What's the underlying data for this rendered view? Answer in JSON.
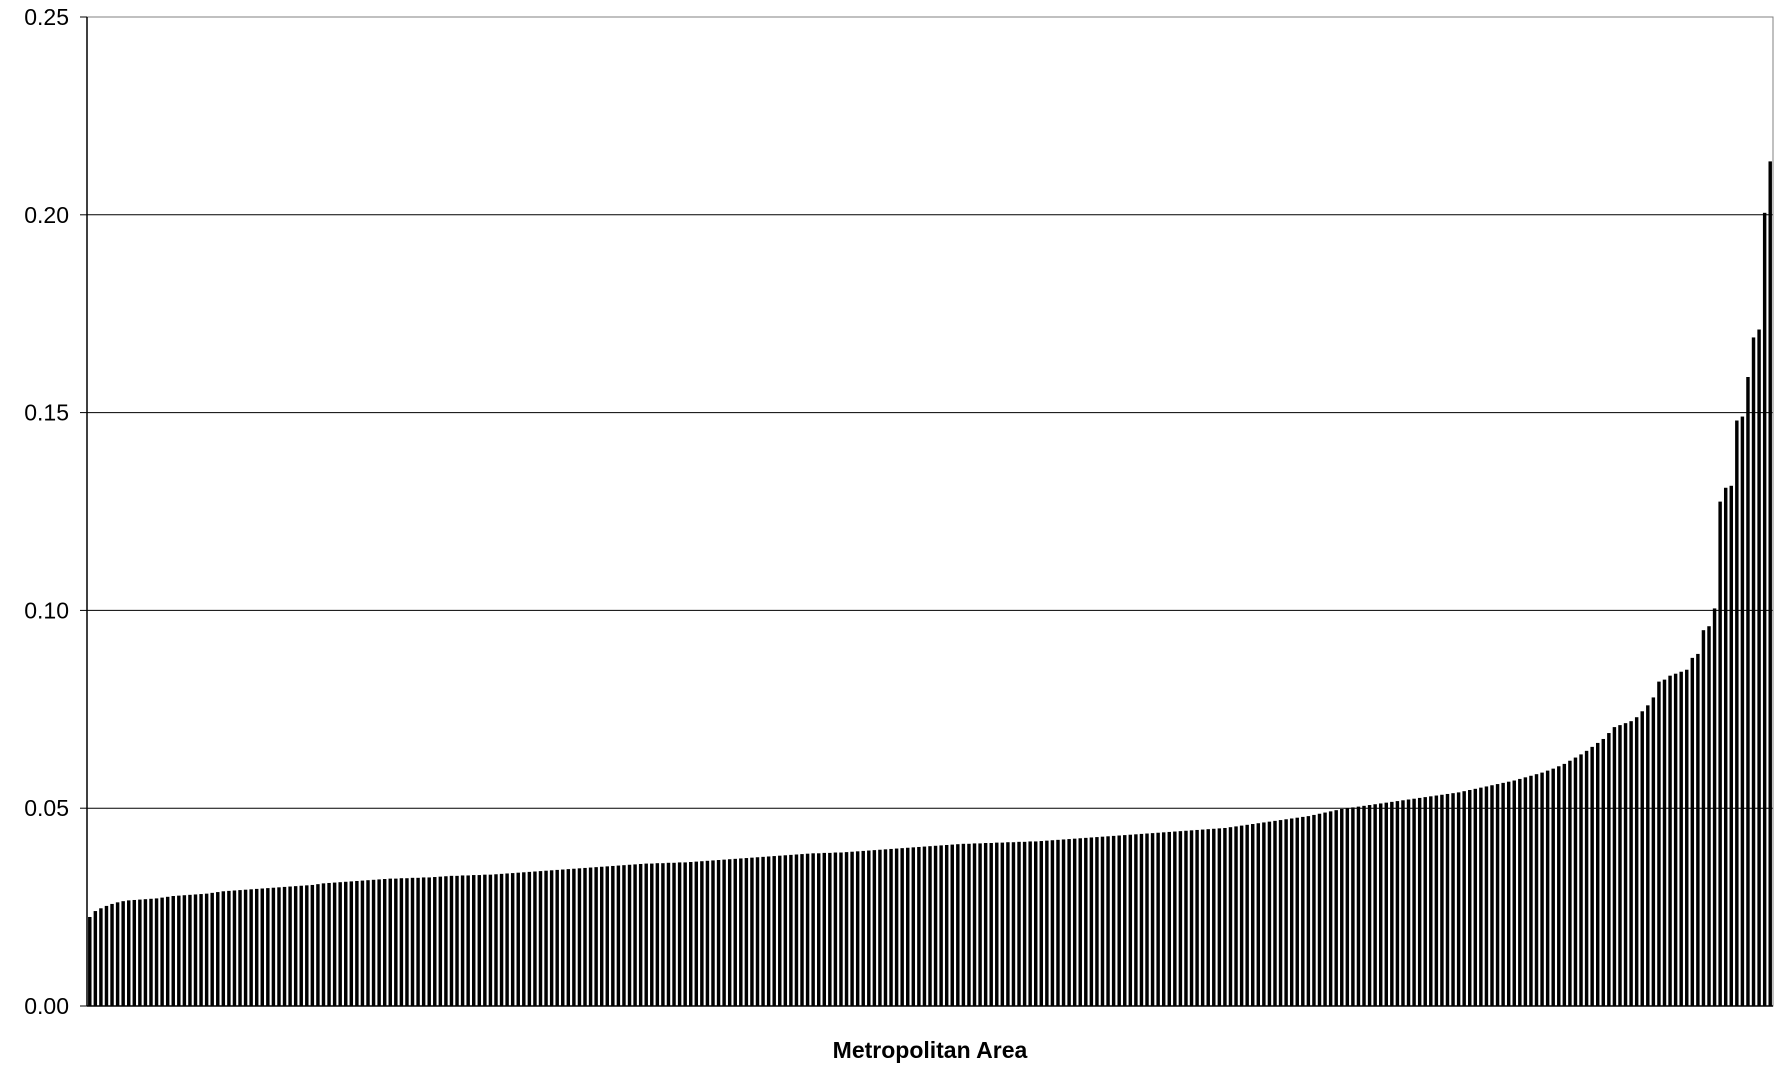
{
  "chart_data": {
    "type": "bar",
    "title": "",
    "xlabel": "Metropolitan Area",
    "ylabel": "",
    "ylim": [
      0,
      0.25
    ],
    "yticks": [
      "0.00",
      "0.05",
      "0.10",
      "0.15",
      "0.20",
      "0.25"
    ],
    "grid": true,
    "legend": "none",
    "categories_count": 315,
    "series": [
      {
        "values": [
          0.0225,
          0.024,
          0.0247,
          0.0253,
          0.0258,
          0.0262,
          0.0265,
          0.0267,
          0.0268,
          0.0269,
          0.027,
          0.0271,
          0.0272,
          0.0274,
          0.0276,
          0.0278,
          0.0279,
          0.028,
          0.0281,
          0.0282,
          0.0283,
          0.0284,
          0.0286,
          0.0288,
          0.029,
          0.0291,
          0.0292,
          0.0293,
          0.0294,
          0.0295,
          0.0296,
          0.0297,
          0.0298,
          0.0299,
          0.03,
          0.0301,
          0.0302,
          0.0303,
          0.0304,
          0.0305,
          0.0306,
          0.0308,
          0.031,
          0.0311,
          0.0312,
          0.0313,
          0.0314,
          0.0315,
          0.0316,
          0.0317,
          0.0318,
          0.0319,
          0.032,
          0.0321,
          0.0322,
          0.0322,
          0.0323,
          0.0323,
          0.0324,
          0.0324,
          0.0325,
          0.0325,
          0.0326,
          0.0327,
          0.0328,
          0.0329,
          0.0329,
          0.033,
          0.033,
          0.0331,
          0.0331,
          0.0332,
          0.0332,
          0.0333,
          0.0334,
          0.0335,
          0.0336,
          0.0337,
          0.0338,
          0.0339,
          0.034,
          0.0341,
          0.0342,
          0.0343,
          0.0344,
          0.0345,
          0.0346,
          0.0347,
          0.0348,
          0.0349,
          0.035,
          0.0351,
          0.0352,
          0.0353,
          0.0354,
          0.0355,
          0.0356,
          0.0357,
          0.0358,
          0.0359,
          0.036,
          0.036,
          0.0361,
          0.0361,
          0.0362,
          0.0362,
          0.0363,
          0.0363,
          0.0364,
          0.0365,
          0.0366,
          0.0367,
          0.0368,
          0.0369,
          0.037,
          0.0371,
          0.0372,
          0.0373,
          0.0374,
          0.0375,
          0.0376,
          0.0377,
          0.0378,
          0.0379,
          0.038,
          0.0381,
          0.0382,
          0.0383,
          0.0384,
          0.0385,
          0.0386,
          0.0386,
          0.0387,
          0.0387,
          0.0388,
          0.0388,
          0.0389,
          0.039,
          0.0391,
          0.0392,
          0.0393,
          0.0394,
          0.0395,
          0.0396,
          0.0397,
          0.0398,
          0.0399,
          0.04,
          0.0401,
          0.0402,
          0.0403,
          0.0404,
          0.0405,
          0.0406,
          0.0407,
          0.0408,
          0.0409,
          0.041,
          0.041,
          0.0411,
          0.0411,
          0.0412,
          0.0412,
          0.0413,
          0.0413,
          0.0414,
          0.0414,
          0.0415,
          0.0415,
          0.0416,
          0.0416,
          0.0417,
          0.0418,
          0.0419,
          0.042,
          0.0421,
          0.0422,
          0.0423,
          0.0424,
          0.0425,
          0.0426,
          0.0427,
          0.0428,
          0.0429,
          0.043,
          0.0431,
          0.0432,
          0.0433,
          0.0434,
          0.0435,
          0.0436,
          0.0437,
          0.0438,
          0.0439,
          0.044,
          0.0441,
          0.0442,
          0.0443,
          0.0444,
          0.0445,
          0.0446,
          0.0447,
          0.0448,
          0.0449,
          0.045,
          0.0452,
          0.0454,
          0.0456,
          0.0458,
          0.046,
          0.0462,
          0.0464,
          0.0466,
          0.0468,
          0.047,
          0.0472,
          0.0474,
          0.0476,
          0.0478,
          0.048,
          0.0483,
          0.0486,
          0.0489,
          0.0492,
          0.0495,
          0.0498,
          0.05,
          0.0502,
          0.0504,
          0.0506,
          0.0508,
          0.051,
          0.0512,
          0.0514,
          0.0516,
          0.0518,
          0.052,
          0.0522,
          0.0524,
          0.0526,
          0.0528,
          0.053,
          0.0532,
          0.0534,
          0.0536,
          0.0538,
          0.054,
          0.0543,
          0.0546,
          0.0549,
          0.0552,
          0.0555,
          0.0558,
          0.0561,
          0.0564,
          0.0567,
          0.057,
          0.0574,
          0.0578,
          0.0582,
          0.0586,
          0.059,
          0.0595,
          0.06,
          0.0606,
          0.0612,
          0.062,
          0.0628,
          0.0636,
          0.0645,
          0.0655,
          0.0665,
          0.0675,
          0.069,
          0.0705,
          0.071,
          0.0715,
          0.072,
          0.073,
          0.0745,
          0.076,
          0.078,
          0.082,
          0.0825,
          0.0835,
          0.084,
          0.0845,
          0.085,
          0.088,
          0.089,
          0.095,
          0.096,
          0.1005,
          0.1275,
          0.131,
          0.1315,
          0.148,
          0.149,
          0.159,
          0.169,
          0.171,
          0.2005,
          0.2135
        ]
      }
    ]
  }
}
